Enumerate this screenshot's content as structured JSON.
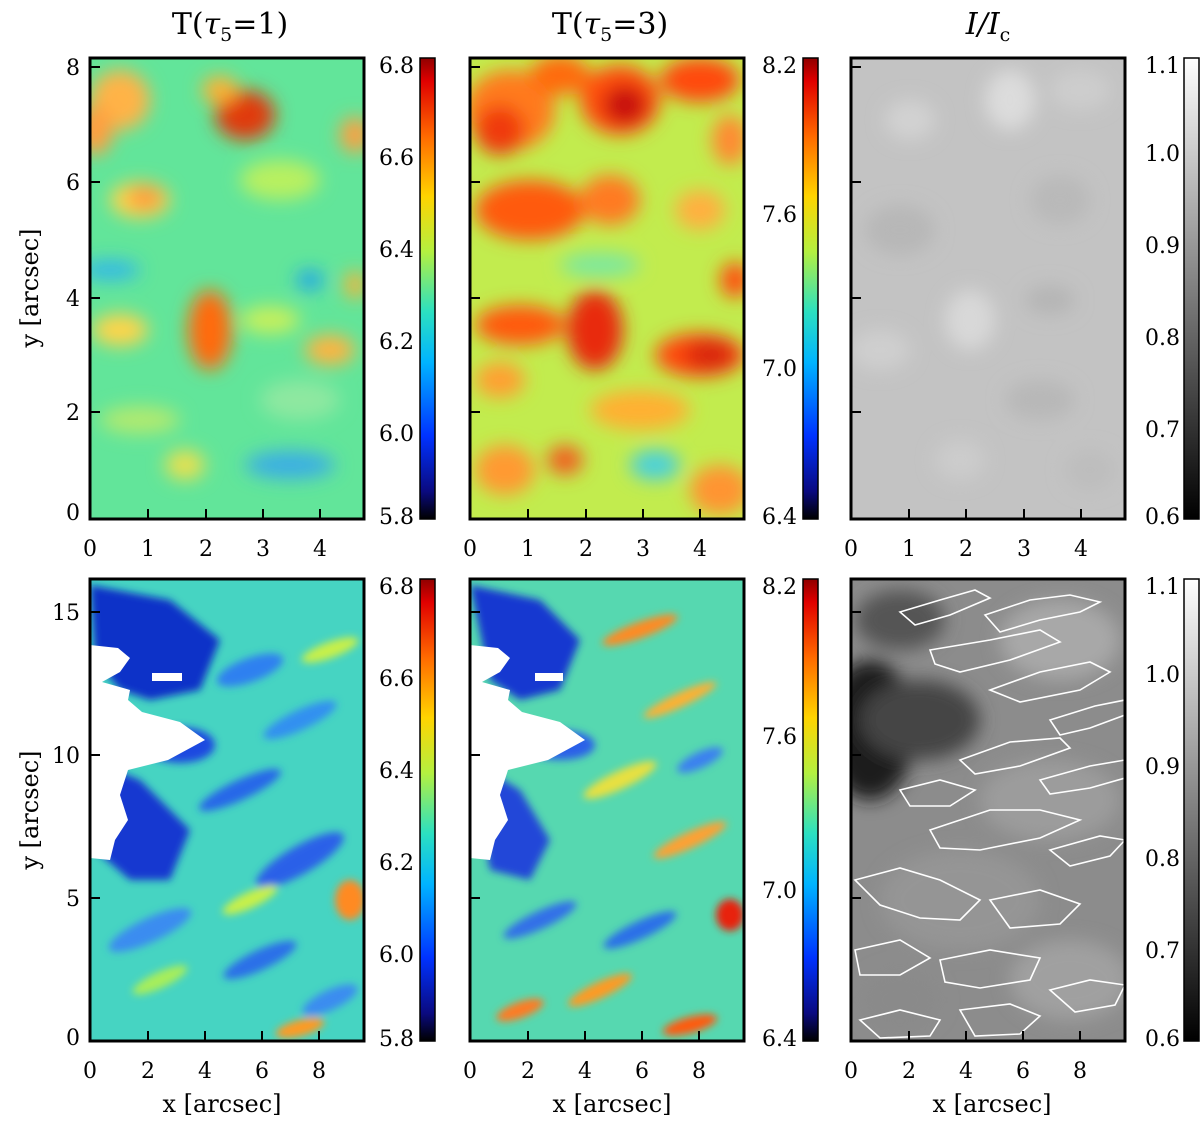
{
  "chart_data": {
    "type": "heatmap",
    "titles": {
      "t1_prefix": "T(",
      "t1_sub": "5",
      "t1_suffix": "=1)",
      "t3_prefix": "T(",
      "t3_sub": "5",
      "t3_suffix": "=3)",
      "i_label": "I/I",
      "i_sub": "c"
    },
    "axis_labels": {
      "x": "x [arcsec]",
      "y": "y [arcsec]"
    },
    "colorbars": {
      "t1": {
        "ticks": [
          "6.8",
          "6.6",
          "6.4",
          "6.2",
          "6.0",
          "5.8"
        ],
        "range": [
          5.8,
          6.8
        ],
        "colormap": "jet"
      },
      "t3": {
        "ticks": [
          "8.2",
          "7.6",
          "7.0",
          "6.4"
        ],
        "range": [
          6.4,
          8.2
        ],
        "colormap": "jet"
      },
      "ic": {
        "ticks": [
          "1.1",
          "1.0",
          "0.9",
          "0.8",
          "0.7",
          "0.6"
        ],
        "range": [
          0.6,
          1.1
        ],
        "colormap": "gray"
      }
    },
    "top_row": {
      "x_ticks": [
        "0",
        "1",
        "2",
        "3",
        "4"
      ],
      "y_ticks": [
        "8",
        "6",
        "4",
        "2",
        "0"
      ],
      "x_range": [
        0,
        4.8
      ],
      "y_range": [
        0,
        8.1
      ]
    },
    "bottom_row": {
      "x_ticks": [
        "0",
        "2",
        "4",
        "6",
        "8"
      ],
      "y_ticks": [
        "15",
        "10",
        "5",
        "0"
      ],
      "x_range": [
        0,
        9.6
      ],
      "y_range": [
        0,
        16.2
      ],
      "contours": "white contours on intensity map"
    }
  },
  "colors": {
    "frame": "#000000",
    "contour": "#ffffff",
    "masked": "#ffffff"
  }
}
